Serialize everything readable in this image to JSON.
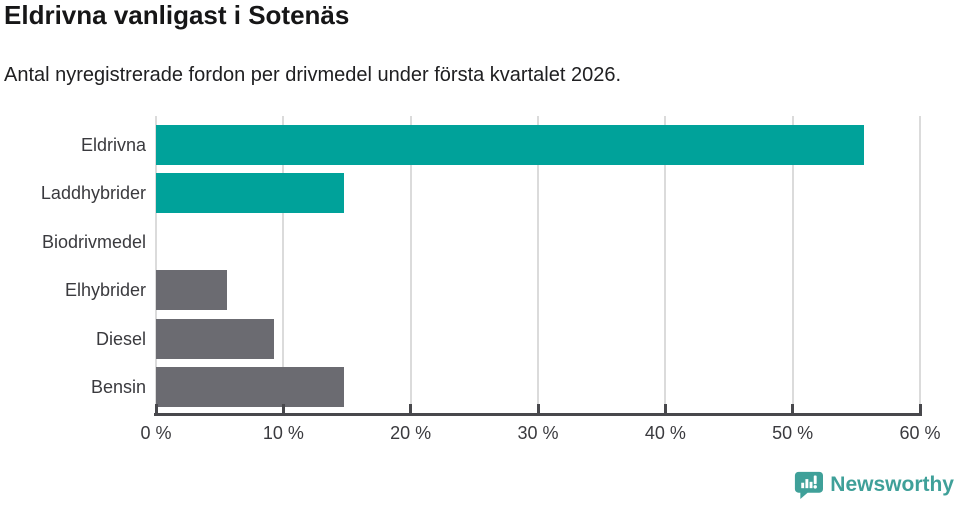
{
  "header": {
    "title": "Eldrivna vanligast i Sotenäs",
    "subtitle": "Antal nyregistrerade fordon per drivmedel under första kvartalet 2026."
  },
  "chart_data": {
    "type": "bar",
    "orientation": "horizontal",
    "title": "Eldrivna vanligast i Sotenäs",
    "subtitle": "Antal nyregistrerade fordon per drivmedel under första kvartalet 2026.",
    "categories": [
      "Eldrivna",
      "Laddhybrider",
      "Biodrivmedel",
      "Elhybrider",
      "Diesel",
      "Bensin"
    ],
    "values": [
      55.6,
      14.8,
      0,
      5.6,
      9.3,
      14.8
    ],
    "unit": "%",
    "bar_colors": [
      "#00a29a",
      "#00a29a",
      "#6b6b71",
      "#6b6b71",
      "#6b6b71",
      "#6b6b71"
    ],
    "xlabel": "",
    "ylabel": "",
    "xlim": [
      0,
      60
    ],
    "x_tick_values": [
      0,
      10,
      20,
      30,
      40,
      50,
      60
    ],
    "x_tick_labels": [
      "0 %",
      "10 %",
      "20 %",
      "30 %",
      "40 %",
      "50 %",
      "60 %"
    ],
    "grid": true,
    "legend": "none"
  },
  "footer": {
    "brand": "Newsworthy",
    "logo_icon": "bar-chart-speech-bubble-icon"
  },
  "colors": {
    "highlight_teal": "#00a29a",
    "neutral_gray": "#6b6b71",
    "gridline": "#dbdbdb",
    "axis": "#48484c",
    "text": "#3a3a3e",
    "brand_teal": "#3fa099"
  }
}
